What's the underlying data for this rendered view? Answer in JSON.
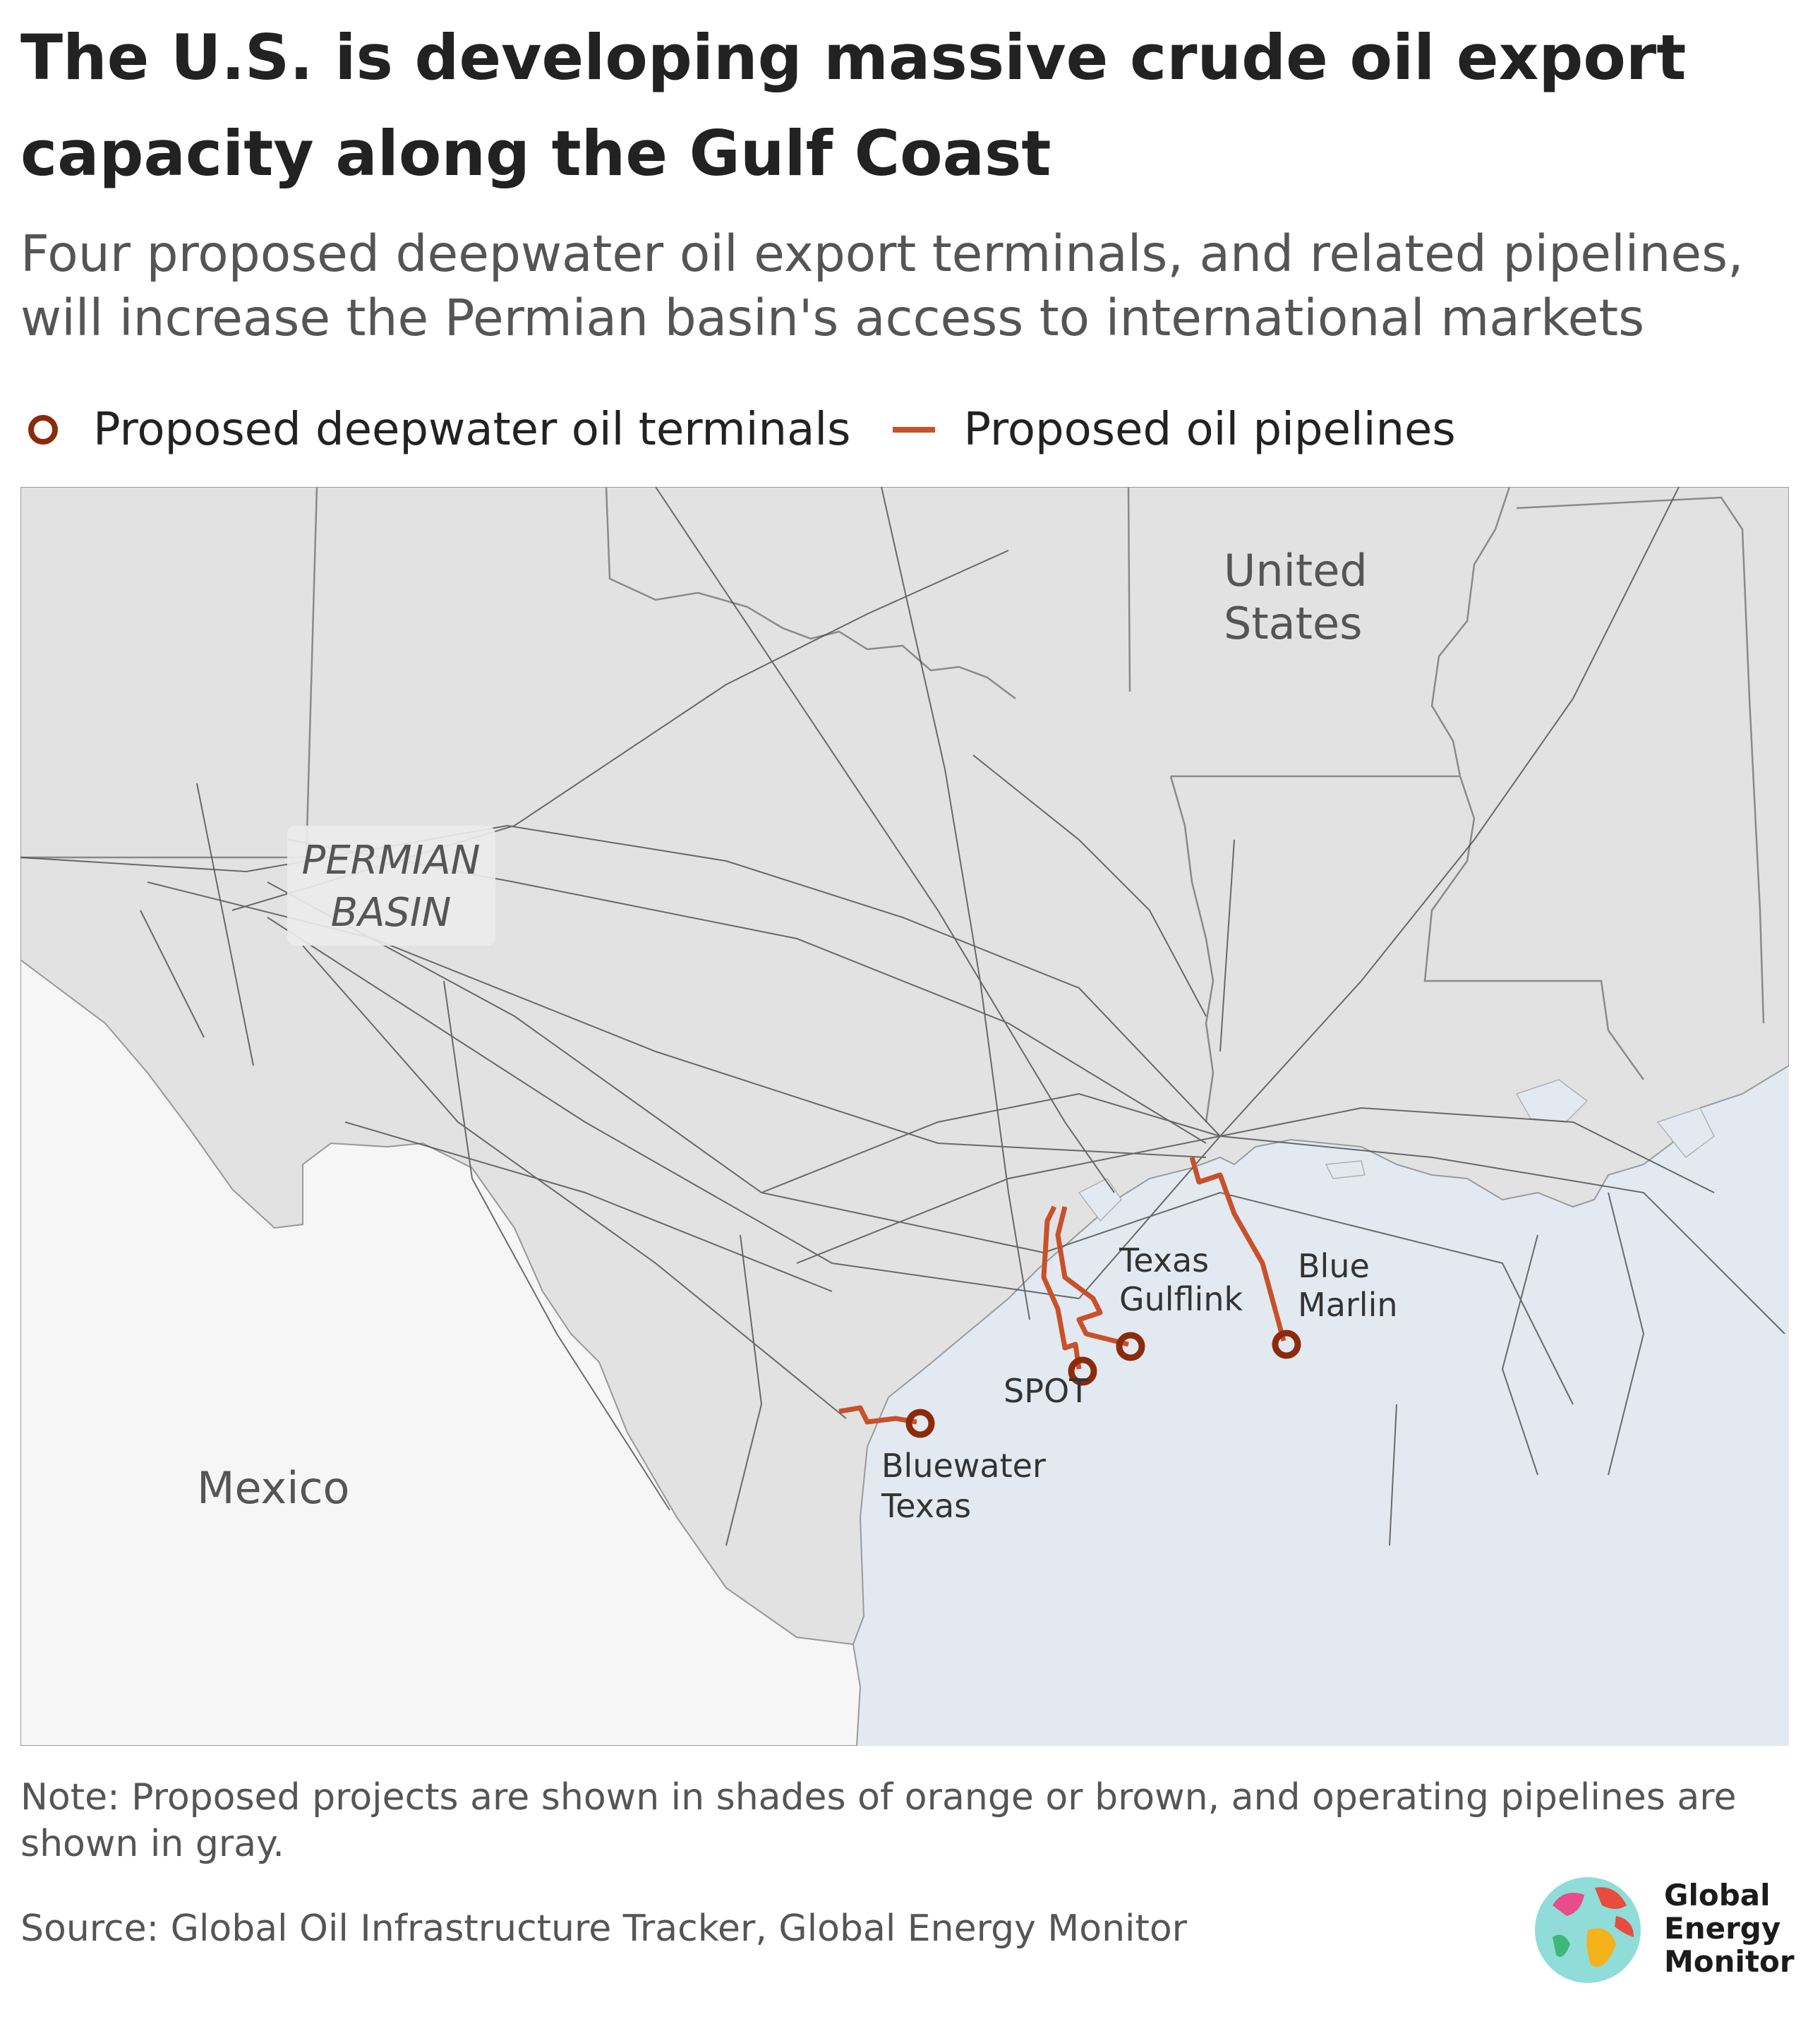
{
  "title": "The U.S. is developing massive crude oil export capacity along the Gulf Coast",
  "subtitle": "Four proposed deepwater oil export terminals, and related pipelines, will increase the Permian basin's access to international markets",
  "legend": {
    "terminals_label": "Proposed deepwater oil terminals",
    "pipelines_label": "Proposed oil pipelines"
  },
  "map": {
    "region_labels": {
      "us_line1": "United",
      "us_line2": "States",
      "mexico": "Mexico",
      "permian_line1": "PERMIAN",
      "permian_line2": "BASIN"
    },
    "terminals": [
      {
        "id": "bluewater",
        "name_line1": "Bluewater",
        "name_line2": "Texas"
      },
      {
        "id": "spot",
        "name_line1": "SPOT",
        "name_line2": ""
      },
      {
        "id": "gulflink",
        "name_line1": "Texas",
        "name_line2": "Gulflink"
      },
      {
        "id": "bluemarlin",
        "name_line1": "Blue",
        "name_line2": "Marlin"
      }
    ],
    "colors": {
      "land": "#e2e2e2",
      "mexico_land": "#f6f6f6",
      "water": "#e3e9f0",
      "border": "#9a9a9a",
      "operating_pipeline": "#4a4a4a",
      "proposed_pipeline": "#c8502a",
      "terminal": "#8a2b0c"
    }
  },
  "note": "Note: Proposed projects are shown in shades of orange or brown, and operating pipelines are shown in gray.",
  "source": "Source: Global Oil Infrastructure Tracker, Global Energy Monitor",
  "logo": {
    "line1": "Global",
    "line2": "Energy",
    "line3": "Monitor"
  }
}
